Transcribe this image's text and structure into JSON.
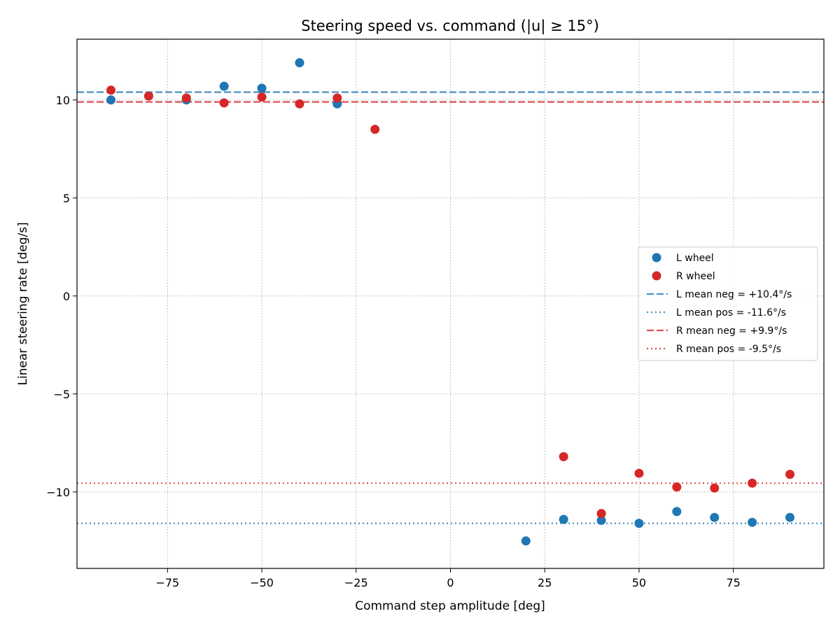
{
  "chart_data": {
    "type": "scatter",
    "title": "Steering speed vs. command (|u| ≥ 15°)",
    "xlabel": "Command step amplitude [deg]",
    "ylabel": "Linear steering rate [deg/s]",
    "xlim": [
      -99,
      99
    ],
    "ylim": [
      -13.9,
      13.1
    ],
    "xticks": [
      -75,
      -50,
      -25,
      0,
      25,
      50,
      75
    ],
    "xtick_labels": [
      "−75",
      "−50",
      "−25",
      "0",
      "25",
      "50",
      "75"
    ],
    "yticks": [
      -10,
      -5,
      0,
      5,
      10
    ],
    "ytick_labels": [
      "−10",
      "−5",
      "0",
      "5",
      "10"
    ],
    "grid": true,
    "legend_position": "center-right",
    "series": [
      {
        "name": "L wheel",
        "color": "#1f77b4",
        "points": [
          [
            -90,
            10.0
          ],
          [
            -80,
            10.2
          ],
          [
            -70,
            10.0
          ],
          [
            -60,
            10.7
          ],
          [
            -50,
            10.6
          ],
          [
            -40,
            11.9
          ],
          [
            -30,
            9.8
          ],
          [
            20,
            -12.5
          ],
          [
            30,
            -11.4
          ],
          [
            40,
            -11.45
          ],
          [
            50,
            -11.6
          ],
          [
            60,
            -11.0
          ],
          [
            70,
            -11.3
          ],
          [
            80,
            -11.55
          ],
          [
            90,
            -11.3
          ]
        ]
      },
      {
        "name": "R wheel",
        "color": "#d62728",
        "points": [
          [
            -90,
            10.5
          ],
          [
            -80,
            10.2
          ],
          [
            -70,
            10.1
          ],
          [
            -60,
            9.85
          ],
          [
            -50,
            10.15
          ],
          [
            -40,
            9.8
          ],
          [
            -30,
            10.1
          ],
          [
            -20,
            8.5
          ],
          [
            30,
            -8.2
          ],
          [
            40,
            -11.1
          ],
          [
            50,
            -9.05
          ],
          [
            60,
            -9.75
          ],
          [
            70,
            -9.8
          ],
          [
            80,
            -9.55
          ],
          [
            90,
            -9.1
          ]
        ]
      }
    ],
    "reference_lines": [
      {
        "name": "L mean neg = +10.4°/s",
        "y": 10.4,
        "color": "#1f77b4",
        "style": "dashed"
      },
      {
        "name": "L mean pos = -11.6°/s",
        "y": -11.6,
        "color": "#1f77b4",
        "style": "dotted"
      },
      {
        "name": "R mean neg = +9.9°/s",
        "y": 9.9,
        "color": "#d62728",
        "style": "dashed"
      },
      {
        "name": "R mean pos = -9.5°/s",
        "y": -9.55,
        "color": "#d62728",
        "style": "dotted"
      }
    ]
  }
}
